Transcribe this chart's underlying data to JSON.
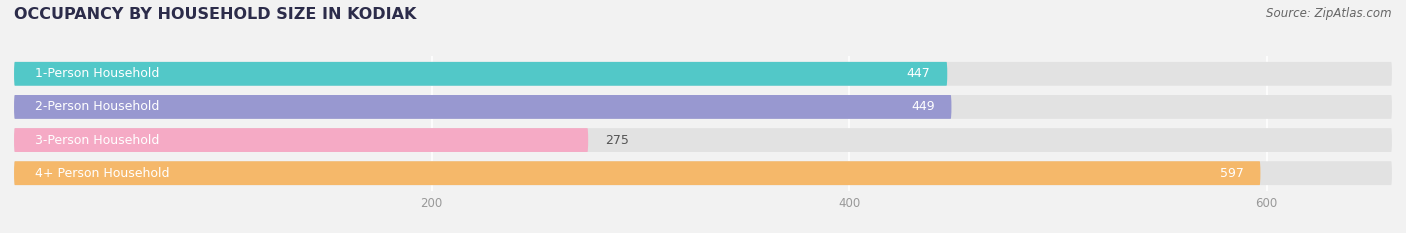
{
  "title": "OCCUPANCY BY HOUSEHOLD SIZE IN KODIAK",
  "source": "Source: ZipAtlas.com",
  "categories": [
    "1-Person Household",
    "2-Person Household",
    "3-Person Household",
    "4+ Person Household"
  ],
  "values": [
    447,
    449,
    275,
    597
  ],
  "bar_colors": [
    "#52c8c8",
    "#9898d0",
    "#f5aac5",
    "#f5b86a"
  ],
  "value_colors": [
    "white",
    "white",
    "#555555",
    "white"
  ],
  "xlim": [
    0,
    660
  ],
  "xticks": [
    200,
    400,
    600
  ],
  "title_fontsize": 11.5,
  "source_fontsize": 8.5,
  "label_fontsize": 9,
  "value_fontsize": 9,
  "background_color": "#f2f2f2",
  "bar_bg_color": "#e2e2e2",
  "title_color": "#2c2c4a",
  "source_color": "#666666",
  "tick_color": "#999999"
}
